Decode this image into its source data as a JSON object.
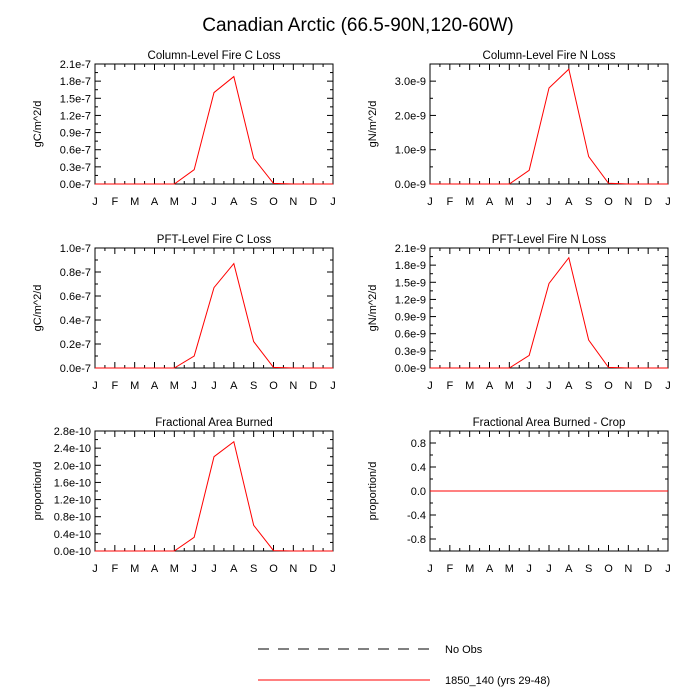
{
  "figure_title": "Canadian Arctic (66.5-90N,120-60W)",
  "legend": {
    "items": [
      {
        "label": "No Obs",
        "style": "dashed",
        "color": "#000000"
      },
      {
        "label": "1850_140 (yrs 29-48)",
        "style": "solid",
        "color": "#ff0000"
      }
    ]
  },
  "chart_data": [
    {
      "type": "line",
      "title": "Column-Level Fire C Loss",
      "ylabel": "gC/m^2/d",
      "categories": [
        "J",
        "F",
        "M",
        "A",
        "M",
        "J",
        "J",
        "A",
        "S",
        "O",
        "N",
        "D",
        "J"
      ],
      "ylim": [
        0,
        2.1e-07
      ],
      "yticks": [
        0,
        3e-08,
        6e-08,
        9e-08,
        1.2e-07,
        1.5e-07,
        1.8e-07,
        2.1e-07
      ],
      "ytick_labels": [
        "0.0e-7",
        "0.3e-7",
        "0.6e-7",
        "0.9e-7",
        "1.2e-7",
        "1.5e-7",
        "1.8e-7",
        "2.1e-7"
      ],
      "series": [
        {
          "name": "1850_140 (yrs 29-48)",
          "color": "#ff0000",
          "values": [
            0,
            0,
            0,
            0,
            0,
            2.5e-08,
            1.6e-07,
            1.88e-07,
            4.5e-08,
            1e-09,
            0,
            0,
            0
          ]
        }
      ]
    },
    {
      "type": "line",
      "title": "Column-Level Fire N Loss",
      "ylabel": "gN/m^2/d",
      "categories": [
        "J",
        "F",
        "M",
        "A",
        "M",
        "J",
        "J",
        "A",
        "S",
        "O",
        "N",
        "D",
        "J"
      ],
      "ylim": [
        0,
        3.5e-09
      ],
      "yticks": [
        0,
        1e-09,
        2e-09,
        3e-09
      ],
      "ytick_labels": [
        "0.0e-9",
        "1.0e-9",
        "2.0e-9",
        "3.0e-9"
      ],
      "series": [
        {
          "name": "1850_140 (yrs 29-48)",
          "color": "#ff0000",
          "values": [
            0,
            0,
            0,
            0,
            0,
            4e-10,
            2.8e-09,
            3.35e-09,
            8e-10,
            2e-11,
            0,
            0,
            0
          ]
        }
      ]
    },
    {
      "type": "line",
      "title": "PFT-Level Fire C Loss",
      "ylabel": "gC/m^2/d",
      "categories": [
        "J",
        "F",
        "M",
        "A",
        "M",
        "J",
        "J",
        "A",
        "S",
        "O",
        "N",
        "D",
        "J"
      ],
      "ylim": [
        0,
        1e-07
      ],
      "yticks": [
        0,
        2e-08,
        4e-08,
        6e-08,
        8e-08,
        1e-07
      ],
      "ytick_labels": [
        "0.0e-7",
        "0.2e-7",
        "0.4e-7",
        "0.6e-7",
        "0.8e-7",
        "1.0e-7"
      ],
      "series": [
        {
          "name": "1850_140 (yrs 29-48)",
          "color": "#ff0000",
          "values": [
            0,
            0,
            0,
            0,
            0,
            1e-08,
            6.7e-08,
            8.7e-08,
            2.2e-08,
            5e-10,
            0,
            0,
            0
          ]
        }
      ]
    },
    {
      "type": "line",
      "title": "PFT-Level Fire N Loss",
      "ylabel": "gN/m^2/d",
      "categories": [
        "J",
        "F",
        "M",
        "A",
        "M",
        "J",
        "J",
        "A",
        "S",
        "O",
        "N",
        "D",
        "J"
      ],
      "ylim": [
        0,
        2.1e-09
      ],
      "yticks": [
        0,
        3e-10,
        6e-10,
        9e-10,
        1.2e-09,
        1.5e-09,
        1.8e-09,
        2.1e-09
      ],
      "ytick_labels": [
        "0.0e-9",
        "0.3e-9",
        "0.6e-9",
        "0.9e-9",
        "1.2e-9",
        "1.5e-9",
        "1.8e-9",
        "2.1e-9"
      ],
      "series": [
        {
          "name": "1850_140 (yrs 29-48)",
          "color": "#ff0000",
          "values": [
            0,
            0,
            0,
            0,
            0,
            2.2e-10,
            1.48e-09,
            1.93e-09,
            4.9e-10,
            1e-11,
            0,
            0,
            0
          ]
        }
      ]
    },
    {
      "type": "line",
      "title": "Fractional Area Burned",
      "ylabel": "proportion/d",
      "categories": [
        "J",
        "F",
        "M",
        "A",
        "M",
        "J",
        "J",
        "A",
        "S",
        "O",
        "N",
        "D",
        "J"
      ],
      "ylim": [
        0,
        2.8e-10
      ],
      "yticks": [
        0,
        4e-11,
        8e-11,
        1.2e-10,
        1.6e-10,
        2e-10,
        2.4e-10,
        2.8e-10
      ],
      "ytick_labels": [
        "0.0e-10",
        "0.4e-10",
        "0.8e-10",
        "1.2e-10",
        "1.6e-10",
        "2.0e-10",
        "2.4e-10",
        "2.8e-10"
      ],
      "series": [
        {
          "name": "1850_140 (yrs 29-48)",
          "color": "#ff0000",
          "values": [
            0,
            0,
            0,
            0,
            0,
            3.2e-11,
            2.2e-10,
            2.55e-10,
            6e-11,
            1e-12,
            0,
            0,
            0
          ]
        }
      ]
    },
    {
      "type": "line",
      "title": "Fractional Area Burned - Crop",
      "ylabel": "proportion/d",
      "categories": [
        "J",
        "F",
        "M",
        "A",
        "M",
        "J",
        "J",
        "A",
        "S",
        "O",
        "N",
        "D",
        "J"
      ],
      "ylim": [
        -1.0,
        1.0
      ],
      "yticks": [
        -0.8,
        -0.4,
        0.0,
        0.4,
        0.8
      ],
      "ytick_labels": [
        "-0.8",
        "-0.4",
        "0.0",
        "0.4",
        "0.8"
      ],
      "series": [
        {
          "name": "1850_140 (yrs 29-48)",
          "color": "#ff0000",
          "values": [
            0,
            0,
            0,
            0,
            0,
            0,
            0,
            0,
            0,
            0,
            0,
            0,
            0
          ]
        }
      ]
    }
  ]
}
